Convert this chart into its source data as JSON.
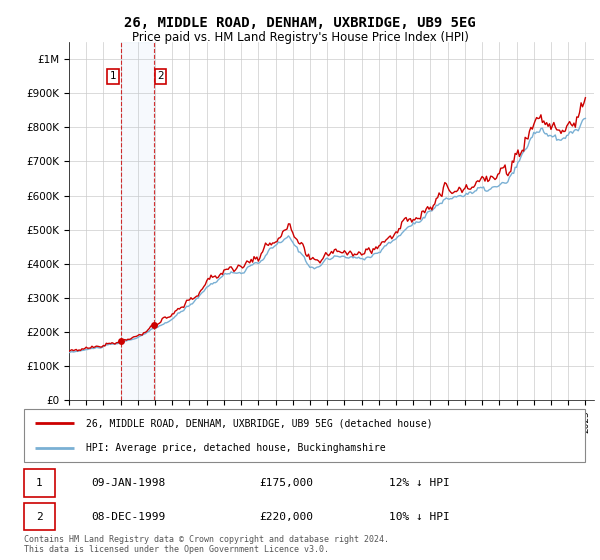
{
  "title": "26, MIDDLE ROAD, DENHAM, UXBRIDGE, UB9 5EG",
  "subtitle": "Price paid vs. HM Land Registry's House Price Index (HPI)",
  "ylabel_ticks": [
    "£0",
    "£100K",
    "£200K",
    "£300K",
    "£400K",
    "£500K",
    "£600K",
    "£700K",
    "£800K",
    "£900K",
    "£1M"
  ],
  "ytick_vals": [
    0,
    100000,
    200000,
    300000,
    400000,
    500000,
    600000,
    700000,
    800000,
    900000,
    1000000
  ],
  "ylim": [
    0,
    1050000
  ],
  "legend_line1": "26, MIDDLE ROAD, DENHAM, UXBRIDGE, UB9 5EG (detached house)",
  "legend_line2": "HPI: Average price, detached house, Buckinghamshire",
  "transaction1_date": "09-JAN-1998",
  "transaction1_price": "£175,000",
  "transaction1_hpi": "12% ↓ HPI",
  "transaction1_year": 1998.04,
  "transaction1_value": 175000,
  "transaction2_date": "08-DEC-1999",
  "transaction2_price": "£220,000",
  "transaction2_hpi": "10% ↓ HPI",
  "transaction2_year": 1999.92,
  "transaction2_value": 220000,
  "footer": "Contains HM Land Registry data © Crown copyright and database right 2024.\nThis data is licensed under the Open Government Licence v3.0.",
  "line_color_sold": "#cc0000",
  "line_color_hpi": "#7ab0d4",
  "background_color": "#ffffff",
  "grid_color": "#cccccc",
  "xlim_start": 1995.0,
  "xlim_end": 2025.5
}
